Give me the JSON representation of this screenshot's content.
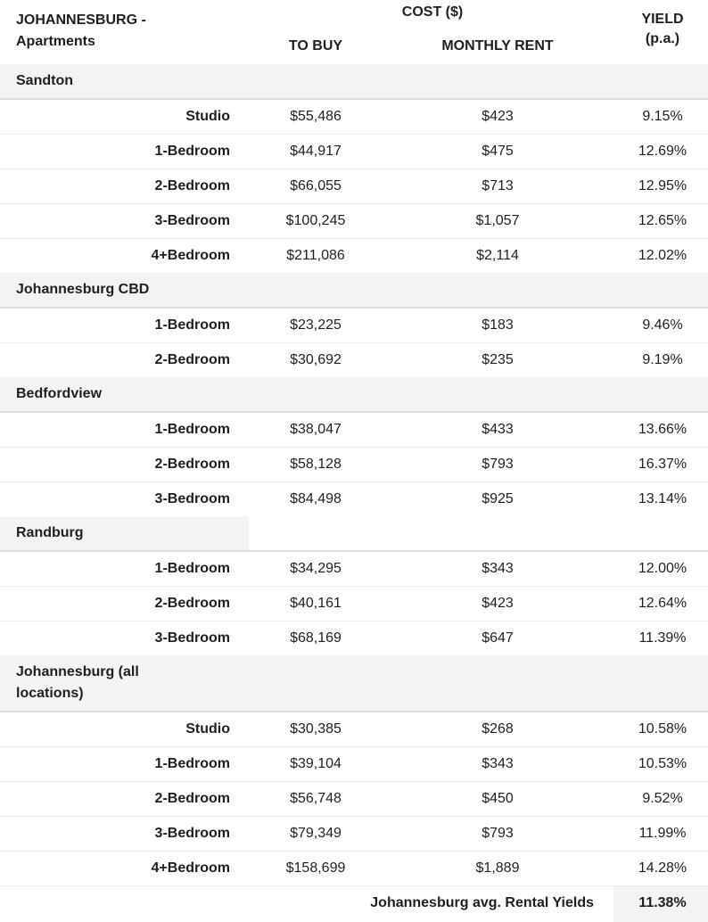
{
  "header": {
    "title": "JOHANNESBURG - Apartments",
    "cost_label": "COST ($)",
    "buy_label": "TO BUY",
    "rent_label": "MONTHLY RENT",
    "yield_label": "YIELD (p.a.)"
  },
  "sections": [
    {
      "name": "Sandton",
      "rows": [
        {
          "type": "Studio",
          "buy": "$55,486",
          "rent": "$423",
          "yield": "9.15%"
        },
        {
          "type": "1-Bedroom",
          "buy": "$44,917",
          "rent": "$475",
          "yield": "12.69%"
        },
        {
          "type": "2-Bedroom",
          "buy": "$66,055",
          "rent": "$713",
          "yield": "12.95%"
        },
        {
          "type": "3-Bedroom",
          "buy": "$100,245",
          "rent": "$1,057",
          "yield": "12.65%"
        },
        {
          "type": "4+Bedroom",
          "buy": "$211,086",
          "rent": "$2,114",
          "yield": "12.02%"
        }
      ]
    },
    {
      "name": "Johannesburg CBD",
      "rows": [
        {
          "type": "1-Bedroom",
          "buy": "$23,225",
          "rent": "$183",
          "yield": "9.46%"
        },
        {
          "type": "2-Bedroom",
          "buy": "$30,692",
          "rent": "$235",
          "yield": "9.19%"
        }
      ]
    },
    {
      "name": "Bedfordview",
      "rows": [
        {
          "type": "1-Bedroom",
          "buy": "$38,047",
          "rent": "$433",
          "yield": "13.66%"
        },
        {
          "type": "2-Bedroom",
          "buy": "$58,128",
          "rent": "$793",
          "yield": "16.37%"
        },
        {
          "type": "3-Bedroom",
          "buy": "$84,498",
          "rent": "$925",
          "yield": "13.14%"
        }
      ]
    },
    {
      "name": "Randburg",
      "rows": [
        {
          "type": "1-Bedroom",
          "buy": "$34,295",
          "rent": "$343",
          "yield": "12.00%"
        },
        {
          "type": "2-Bedroom",
          "buy": "$40,161",
          "rent": "$423",
          "yield": "12.64%"
        },
        {
          "type": "3-Bedroom",
          "buy": "$68,169",
          "rent": "$647",
          "yield": "11.39%"
        }
      ]
    },
    {
      "name": "Johannesburg (all locations)",
      "rows": [
        {
          "type": "Studio",
          "buy": "$30,385",
          "rent": "$268",
          "yield": "10.58%"
        },
        {
          "type": "1-Bedroom",
          "buy": "$39,104",
          "rent": "$343",
          "yield": "10.53%"
        },
        {
          "type": "2-Bedroom",
          "buy": "$56,748",
          "rent": "$450",
          "yield": "9.52%"
        },
        {
          "type": "3-Bedroom",
          "buy": "$79,349",
          "rent": "$793",
          "yield": "11.99%"
        },
        {
          "type": "4+Bedroom",
          "buy": "$158,699",
          "rent": "$1,889",
          "yield": "14.28%"
        }
      ]
    }
  ],
  "average": {
    "label": "Johannesburg avg. Rental Yields",
    "value": "11.38%"
  }
}
